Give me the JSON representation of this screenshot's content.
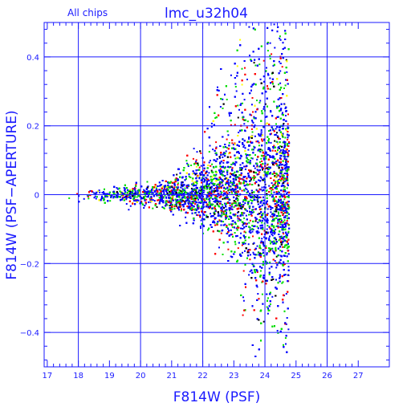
{
  "chart_data": {
    "type": "scatter",
    "title": "lmc_u32h04",
    "subtitle": "All chips",
    "xlabel": "F814W (PSF)",
    "ylabel": "F814W (PSF−APERTURE)",
    "xlim": [
      16.9,
      28.0
    ],
    "ylim": [
      -0.5,
      0.5
    ],
    "grid": true,
    "x_ticks_major": [
      17,
      18,
      19,
      20,
      21,
      22,
      23,
      24,
      25,
      26,
      27
    ],
    "x_tick_labels": [
      "17",
      "18",
      "19",
      "20",
      "21",
      "22",
      "23",
      "24",
      "25",
      "26",
      "27"
    ],
    "y_ticks_major": [
      -0.4,
      -0.2,
      0,
      0.2,
      0.4
    ],
    "y_tick_labels": [
      "−0.4",
      "−0.2",
      "0",
      "0.2",
      "0.4"
    ],
    "colors": {
      "axis": "#1a1aff",
      "grid": "#1a1aff",
      "series": [
        "#0000ff",
        "#00dd00",
        "#ff0000",
        "#ffff00",
        "#000000"
      ]
    },
    "series": [
      {
        "color": "#0000ff"
      },
      {
        "color": "#00dd00"
      },
      {
        "color": "#ff0000"
      },
      {
        "color": "#ffff00"
      },
      {
        "color": "#000000"
      }
    ],
    "distribution": {
      "x_min": 17.3,
      "x_max": 24.85,
      "point_count": 9000,
      "description_note": ""
    }
  }
}
